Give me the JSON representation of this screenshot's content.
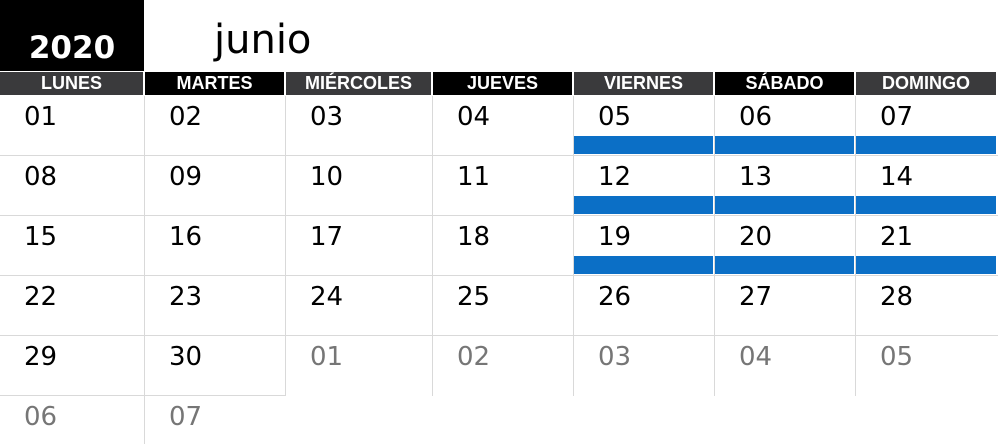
{
  "calendar": {
    "year": "2020",
    "month": "junio",
    "weekdays": [
      "LUNES",
      "MARTES",
      "MIÉRCOLES",
      "JUEVES",
      "VIERNES",
      "SÁBADO",
      "DOMINGO"
    ],
    "weeks": [
      [
        {
          "d": "01",
          "cur": true
        },
        {
          "d": "02",
          "cur": true
        },
        {
          "d": "03",
          "cur": true
        },
        {
          "d": "04",
          "cur": true
        },
        {
          "d": "05",
          "cur": true
        },
        {
          "d": "06",
          "cur": true
        },
        {
          "d": "07",
          "cur": true
        }
      ],
      [
        {
          "d": "08",
          "cur": true
        },
        {
          "d": "09",
          "cur": true
        },
        {
          "d": "10",
          "cur": true
        },
        {
          "d": "11",
          "cur": true
        },
        {
          "d": "12",
          "cur": true
        },
        {
          "d": "13",
          "cur": true
        },
        {
          "d": "14",
          "cur": true
        }
      ],
      [
        {
          "d": "15",
          "cur": true
        },
        {
          "d": "16",
          "cur": true
        },
        {
          "d": "17",
          "cur": true
        },
        {
          "d": "18",
          "cur": true
        },
        {
          "d": "19",
          "cur": true
        },
        {
          "d": "20",
          "cur": true
        },
        {
          "d": "21",
          "cur": true
        }
      ],
      [
        {
          "d": "22",
          "cur": true
        },
        {
          "d": "23",
          "cur": true
        },
        {
          "d": "24",
          "cur": true
        },
        {
          "d": "25",
          "cur": true
        },
        {
          "d": "26",
          "cur": true
        },
        {
          "d": "27",
          "cur": true
        },
        {
          "d": "28",
          "cur": true
        }
      ],
      [
        {
          "d": "29",
          "cur": true
        },
        {
          "d": "30",
          "cur": true
        },
        {
          "d": "01",
          "cur": false
        },
        {
          "d": "02",
          "cur": false
        },
        {
          "d": "03",
          "cur": false
        },
        {
          "d": "04",
          "cur": false
        },
        {
          "d": "05",
          "cur": false
        }
      ],
      [
        {
          "d": "06",
          "cur": false
        },
        {
          "d": "07",
          "cur": false
        }
      ]
    ],
    "highlighted_weeks": [
      0,
      1,
      2
    ],
    "highlighted_columns": [
      4,
      5,
      6
    ]
  },
  "colors": {
    "header_dark": "#3a3a3c",
    "header_black": "#000000",
    "highlight_bar": "#0b6fc6",
    "other_month_text": "#767676"
  }
}
